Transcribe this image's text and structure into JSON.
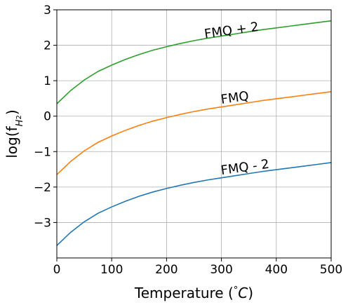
{
  "chart_data": {
    "type": "line",
    "title": "",
    "xlabel": "Temperature (°C)",
    "xlabel_parts": {
      "pre": "Temperature (",
      "sup": "°",
      "mid": "C",
      "post": ")"
    },
    "ylabel": "log(f_H2)",
    "ylabel_parts": {
      "pre": "log(f",
      "sub": "H",
      "subsub": "2",
      "post": ")"
    },
    "xlim": [
      0,
      500
    ],
    "ylim": [
      -4,
      3
    ],
    "xticks": [
      0,
      100,
      200,
      300,
      400,
      500
    ],
    "yticks": [
      -3,
      -2,
      -1,
      0,
      1,
      2,
      3
    ],
    "grid": true,
    "legend": "none",
    "x": [
      0,
      25,
      50,
      75,
      100,
      125,
      150,
      175,
      200,
      225,
      250,
      275,
      300,
      325,
      350,
      375,
      400,
      425,
      450,
      475,
      500
    ],
    "series": [
      {
        "color": "#2ca02c",
        "values": [
          0.35,
          0.72,
          1.02,
          1.26,
          1.44,
          1.6,
          1.74,
          1.86,
          1.96,
          2.05,
          2.13,
          2.2,
          2.26,
          2.32,
          2.38,
          2.44,
          2.49,
          2.54,
          2.59,
          2.64,
          2.69
        ]
      },
      {
        "color": "#ff7f0e",
        "values": [
          -1.65,
          -1.28,
          -0.98,
          -0.74,
          -0.56,
          -0.4,
          -0.26,
          -0.14,
          -0.04,
          0.05,
          0.13,
          0.2,
          0.26,
          0.32,
          0.38,
          0.44,
          0.49,
          0.54,
          0.59,
          0.64,
          0.69
        ]
      },
      {
        "color": "#1f77b4",
        "values": [
          -3.65,
          -3.28,
          -2.98,
          -2.74,
          -2.56,
          -2.4,
          -2.26,
          -2.14,
          -2.04,
          -1.95,
          -1.87,
          -1.8,
          -1.74,
          -1.68,
          -1.62,
          -1.56,
          -1.51,
          -1.46,
          -1.41,
          -1.36,
          -1.31
        ]
      }
    ],
    "annotations": [
      {
        "text": "FMQ + 2",
        "x": 270,
        "y": 2.2,
        "rotate": -8
      },
      {
        "text": "FMQ",
        "x": 300,
        "y": 0.35,
        "rotate": -8
      },
      {
        "text": "FMQ - 2",
        "x": 300,
        "y": -1.65,
        "rotate": -8
      }
    ]
  }
}
